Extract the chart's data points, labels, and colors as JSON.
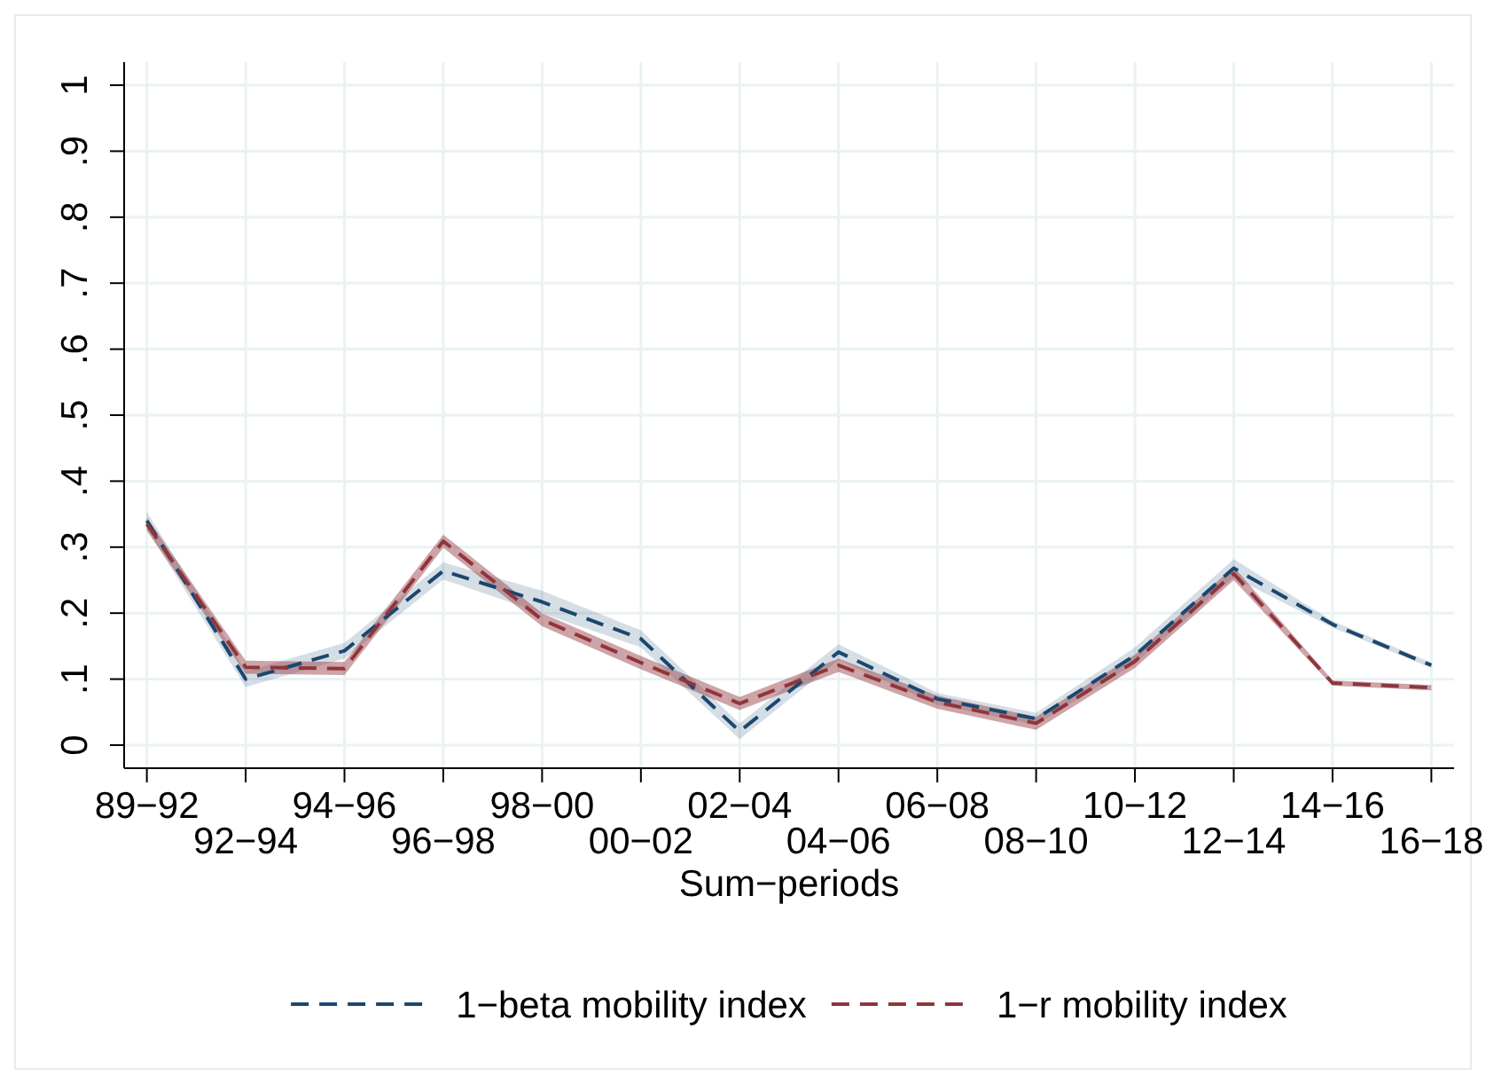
{
  "chart_data": {
    "type": "line",
    "xlabel": "Sum−periods",
    "categories": [
      "89−92",
      "92−94",
      "94−96",
      "96−98",
      "98−00",
      "00−02",
      "02−04",
      "04−06",
      "06−08",
      "08−10",
      "10−12",
      "12−14",
      "14−16",
      "16−18"
    ],
    "ylim": [
      -0.035,
      1.035
    ],
    "yticks": [
      0,
      {
        "value": 0.1,
        "label": ".1"
      },
      {
        "value": 0.2,
        "label": ".2"
      },
      {
        "value": 0.3,
        "label": ".3"
      },
      {
        "value": 0.4,
        "label": ".4"
      },
      {
        "value": 0.5,
        "label": ".5"
      },
      {
        "value": 0.6,
        "label": ".6"
      },
      {
        "value": 0.7,
        "label": ".7"
      },
      {
        "value": 0.8,
        "label": ".8"
      },
      {
        "value": 0.9,
        "label": ".9"
      },
      1
    ],
    "grid": true,
    "legend": "bottom",
    "line_style": "dashed",
    "series": [
      {
        "name": "1−beta mobility index",
        "color": "#1a476f",
        "values": [
          0.34,
          0.1,
          0.143,
          0.264,
          0.217,
          0.161,
          0.021,
          0.141,
          0.07,
          0.04,
          0.136,
          0.268,
          0.183,
          0.121
        ],
        "lower": [
          0.327,
          0.088,
          0.131,
          0.251,
          0.2,
          0.148,
          0.009,
          0.129,
          0.061,
          0.031,
          0.124,
          0.254,
          0.178,
          0.117
        ],
        "upper": [
          0.353,
          0.112,
          0.155,
          0.277,
          0.234,
          0.174,
          0.033,
          0.153,
          0.079,
          0.049,
          0.148,
          0.282,
          0.188,
          0.125
        ]
      },
      {
        "name": "1−r mobility index",
        "color": "#90353b",
        "values": [
          0.335,
          0.118,
          0.116,
          0.309,
          0.19,
          0.125,
          0.063,
          0.121,
          0.065,
          0.033,
          0.127,
          0.26,
          0.094,
          0.087
        ],
        "lower": [
          0.325,
          0.108,
          0.106,
          0.299,
          0.18,
          0.115,
          0.053,
          0.111,
          0.055,
          0.023,
          0.117,
          0.25,
          0.09,
          0.083
        ],
        "upper": [
          0.345,
          0.128,
          0.126,
          0.319,
          0.2,
          0.135,
          0.073,
          0.131,
          0.075,
          0.043,
          0.137,
          0.27,
          0.098,
          0.091
        ]
      }
    ]
  }
}
